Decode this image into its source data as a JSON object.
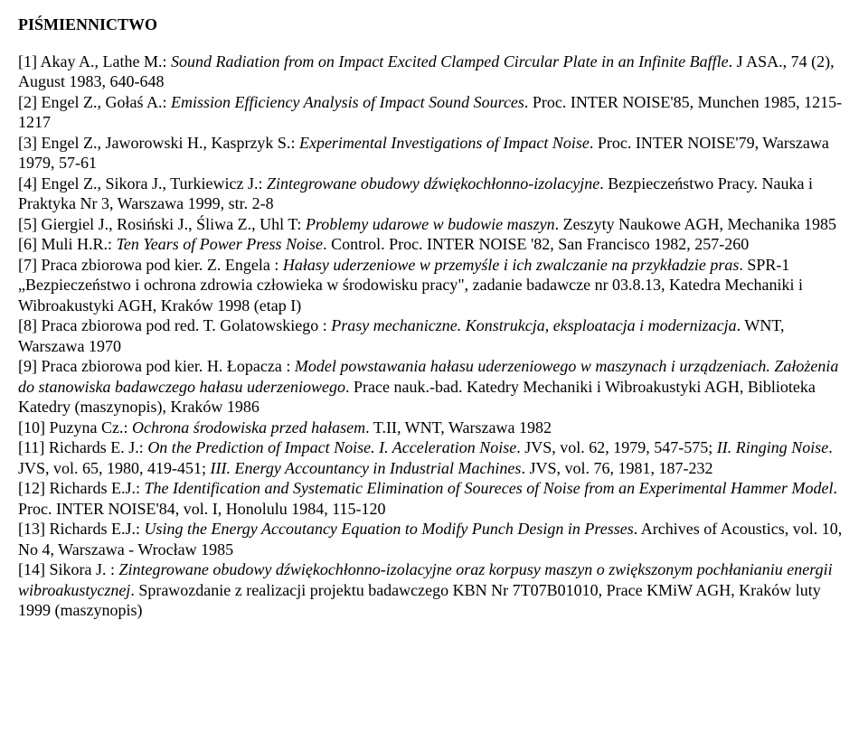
{
  "heading": "PIŚMIENNICTWO",
  "refs": [
    [
      {
        "t": "[1] Akay A., Lathe M.: "
      },
      {
        "t": "Sound Radiation from on Impact Excited Clamped Circular Plate in an Infinite Baffle",
        "i": true
      },
      {
        "t": ". J ASA., 74 (2), August 1983, 640-648"
      }
    ],
    [
      {
        "t": "[2] Engel Z., Gołaś A.: "
      },
      {
        "t": "Emission Efficiency Analysis of Impact Sound Sources",
        "i": true
      },
      {
        "t": ". Proc. INTER NOISE'85, Munchen 1985, 1215-1217"
      }
    ],
    [
      {
        "t": "[3] Engel Z., Jaworowski H., Kasprzyk S.: "
      },
      {
        "t": "Experimental Investigations of Impact Noise",
        "i": true
      },
      {
        "t": ". Proc. INTER NOISE'79, Warszawa 1979, 57-61"
      }
    ],
    [
      {
        "t": "[4] Engel Z., Sikora J., Turkiewicz J.: "
      },
      {
        "t": "Zintegrowane obudowy dźwiękochłonno-izolacyjne",
        "i": true
      },
      {
        "t": ". Bezpieczeństwo Pracy. Nauka i Praktyka Nr 3, Warszawa 1999, str. 2-8"
      }
    ],
    [
      {
        "t": "[5] Giergiel J., Rosiński J., Śliwa Z., Uhl T: "
      },
      {
        "t": "Problemy udarowe w budowie maszyn",
        "i": true
      },
      {
        "t": ". Zeszyty Naukowe AGH, Mechanika 1985"
      }
    ],
    [
      {
        "t": "[6] Muli H.R.: "
      },
      {
        "t": "Ten Years of Power Press Noise",
        "i": true
      },
      {
        "t": ". Control. Proc. INTER NOISE '82, San Francisco 1982, 257-260"
      }
    ],
    [
      {
        "t": "[7] Praca zbiorowa pod kier. Z. Engela : "
      },
      {
        "t": "Hałasy uderzeniowe w przemyśle i ich zwalczanie na przykładzie pras",
        "i": true
      },
      {
        "t": ". SPR-1 „Bezpieczeństwo i ochrona zdrowia człowieka w środowisku pracy\", zadanie badawcze nr 03.8.13, Katedra Mechaniki i Wibroakustyki AGH, Kraków 1998 (etap I)"
      }
    ],
    [
      {
        "t": "[8] Praca zbiorowa pod red. T. Golatowskiego : "
      },
      {
        "t": "Prasy mechaniczne. Konstrukcja, eksploatacja i modernizacja",
        "i": true
      },
      {
        "t": ". WNT, Warszawa 1970"
      }
    ],
    [
      {
        "t": "[9] Praca zbiorowa pod kier. H. Łopacza : "
      },
      {
        "t": "Model powstawania hałasu uderzeniowego w maszynach i urządzeniach. Założenia do stanowiska badawczego hałasu uderzeniowego",
        "i": true
      },
      {
        "t": ". Prace nauk.-bad. Katedry Mechaniki i Wibroakustyki AGH, Biblioteka Katedry (maszynopis), Kraków 1986"
      }
    ],
    [
      {
        "t": "[10] Puzyna Cz.: "
      },
      {
        "t": "Ochrona środowiska przed hałasem",
        "i": true
      },
      {
        "t": ". T.II, WNT, Warszawa 1982"
      }
    ],
    [
      {
        "t": "[11] Richards E. J.: "
      },
      {
        "t": "On the Prediction of Impact Noise. I. Acceleration Noise",
        "i": true
      },
      {
        "t": ". JVS, vol. 62, 1979, 547-575; "
      },
      {
        "t": "II. Ringing Noise",
        "i": true
      },
      {
        "t": ". JVS, vol. 65, 1980, 419-451; "
      },
      {
        "t": "III. Energy Accountancy in Industrial Machines",
        "i": true
      },
      {
        "t": ". JVS, vol. 76, 1981, 187-232"
      }
    ],
    [
      {
        "t": "[12] Richards E.J.: "
      },
      {
        "t": "The Identification and Systematic Elimination of Soureces of Noise from an Experimental Hammer Model",
        "i": true
      },
      {
        "t": ". Proc. INTER NOISE'84, vol. I, Honolulu 1984, 115-120"
      }
    ],
    [
      {
        "t": "[13] Richards E.J.: "
      },
      {
        "t": "Using the Energy Accoutancy Equation to Modify Punch Design in Presses",
        "i": true
      },
      {
        "t": ". Archives of Acoustics, vol. 10, No 4, Warszawa - Wrocław 1985"
      }
    ],
    [
      {
        "t": "[14] Sikora J. : "
      },
      {
        "t": "Zintegrowane obudowy dźwiękochłonno-izolacyjne oraz korpusy maszyn o zwiększonym pochłanianiu energii wibroakustycznej",
        "i": true
      },
      {
        "t": ". Sprawozdanie z realizacji projektu badawczego KBN Nr 7T07B01010, Prace KMiW AGH, Kraków luty 1999 (maszynopis)"
      }
    ]
  ]
}
